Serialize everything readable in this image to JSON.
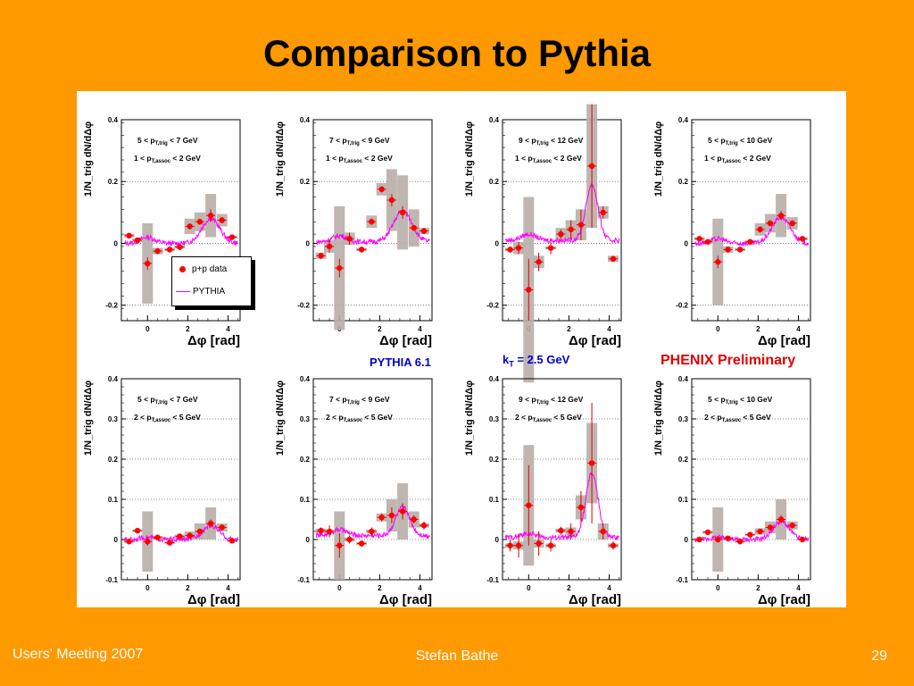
{
  "slide": {
    "title": "Comparison to Pythia",
    "footer_left": "Users' Meeting 2007",
    "footer_center": "Stefan Bathe",
    "footer_right": "29"
  },
  "annotations": {
    "pythia": "PYTHIA 6.1",
    "kt": "k",
    "kt_sub": "T",
    "kt_value": " = 2.5 GeV",
    "phenix": "PHENIX Preliminary"
  },
  "legend": {
    "data_label": "p+p data",
    "pythia_label": "PYTHIA"
  },
  "colors": {
    "background": "#FF9900",
    "data_points": "#FF0000",
    "pythia_curve": "#FF00FF",
    "systematic_box": "#B8AEA8"
  },
  "chart_data": [
    {
      "type": "scatter",
      "row": 0,
      "col": 0,
      "trig_label": "5 < p_T,trig < 7 GeV",
      "assoc_label": "1 < p_T,assoc < 2 GeV",
      "xlabel": "Δφ [rad]",
      "ylabel": "1/N_trig dN/dΔφ",
      "xlim": [
        -1.3,
        4.6
      ],
      "ylim": [
        -0.25,
        0.4
      ],
      "yticks": [
        -0.2,
        0,
        0.2,
        0.4
      ],
      "ytick_labels": [
        "-0.2",
        "0",
        "0.2",
        "0.4"
      ],
      "xticks": [
        0,
        2,
        4
      ],
      "xtick_labels": [
        "0",
        "2",
        "4"
      ],
      "series": [
        {
          "name": "p+p data",
          "x": [
            -0.92,
            -0.5,
            0,
            0.5,
            1.1,
            1.6,
            2.1,
            2.6,
            3.14,
            3.7,
            4.2
          ],
          "y": [
            0.025,
            0.01,
            -0.065,
            -0.025,
            -0.02,
            -0.012,
            0.055,
            0.07,
            0.09,
            0.075,
            0.02
          ],
          "yerr": [
            0.005,
            0.005,
            0.02,
            0.01,
            0.01,
            0.005,
            0.01,
            0.01,
            0.02,
            0.01,
            0.005
          ],
          "sys": [
            0.005,
            0.005,
            0.13,
            0.01,
            0.005,
            0.005,
            0.025,
            0.03,
            0.07,
            0.02,
            0.005
          ]
        }
      ],
      "pythia": {
        "base": 0.0,
        "away": 0.08,
        "near": 0.02,
        "width": 0.45
      }
    },
    {
      "type": "scatter",
      "row": 0,
      "col": 1,
      "trig_label": "7 < p_T,trig < 9 GeV",
      "assoc_label": "1 < p_T,assoc < 2 GeV",
      "xlabel": "Δφ [rad]",
      "ylabel": "1/N_trig dN/dΔφ",
      "xlim": [
        -1.3,
        4.6
      ],
      "ylim": [
        -0.25,
        0.4
      ],
      "yticks": [
        -0.2,
        0,
        0.2,
        0.4
      ],
      "ytick_labels": [
        "-0.2",
        "0",
        "0.2",
        "0.4"
      ],
      "xticks": [
        0,
        2,
        4
      ],
      "xtick_labels": [
        "0",
        "2",
        "4"
      ],
      "series": [
        {
          "name": "p+p data",
          "x": [
            -0.92,
            -0.5,
            0,
            0.5,
            1.1,
            1.6,
            2.1,
            2.6,
            3.14,
            3.7,
            4.2
          ],
          "y": [
            -0.04,
            -0.01,
            -0.08,
            0.015,
            -0.02,
            0.07,
            0.175,
            0.14,
            0.1,
            0.05,
            0.04
          ],
          "yerr": [
            0.01,
            0.02,
            0.03,
            0.02,
            0.01,
            0.01,
            0.01,
            0.02,
            0.02,
            0.01,
            0.01
          ],
          "sys": [
            0.01,
            0.02,
            0.2,
            0.02,
            0.005,
            0.02,
            0.02,
            0.1,
            0.12,
            0.06,
            0.01
          ]
        }
      ],
      "pythia": {
        "base": 0.005,
        "away": 0.1,
        "near": 0.02,
        "width": 0.45
      }
    },
    {
      "type": "scatter",
      "row": 0,
      "col": 2,
      "trig_label": "9 < p_T,trig < 12 GeV",
      "assoc_label": "1 < p_T,assoc < 2 GeV",
      "xlabel": "Δφ [rad]",
      "ylabel": "1/N_trig dN/dΔφ",
      "xlim": [
        -1.3,
        4.6
      ],
      "ylim": [
        -0.25,
        0.4
      ],
      "yticks": [
        -0.2,
        0,
        0.2,
        0.4
      ],
      "ytick_labels": [
        "-0.2",
        "0",
        "0.2",
        "0.4"
      ],
      "xticks": [
        0,
        2,
        4
      ],
      "xtick_labels": [
        "0",
        "2",
        "4"
      ],
      "series": [
        {
          "name": "p+p data",
          "x": [
            -0.92,
            -0.5,
            0,
            0.5,
            1.1,
            1.6,
            2.1,
            2.6,
            3.14,
            3.7,
            4.2
          ],
          "y": [
            -0.02,
            -0.015,
            -0.15,
            -0.06,
            -0.015,
            0.03,
            0.045,
            0.06,
            0.25,
            0.1,
            -0.05
          ],
          "yerr": [
            0.01,
            0.02,
            0.1,
            0.03,
            0.02,
            0.015,
            0.03,
            0.05,
            0.2,
            0.02,
            0.01
          ],
          "sys": [
            0.005,
            0.02,
            0.3,
            0.02,
            0.005,
            0.02,
            0.03,
            0.05,
            0.2,
            0.02,
            0.01
          ]
        }
      ],
      "pythia": {
        "base": 0.01,
        "away": 0.18,
        "near": 0.02,
        "width": 0.3
      }
    },
    {
      "type": "scatter",
      "row": 0,
      "col": 3,
      "trig_label": "5 < p_T,trig < 10 GeV",
      "assoc_label": "1 < p_T,assoc < 2 GeV",
      "xlabel": "Δφ [rad]",
      "ylabel": "1/N_trig dN/dΔφ",
      "xlim": [
        -1.3,
        4.6
      ],
      "ylim": [
        -0.25,
        0.4
      ],
      "yticks": [
        -0.2,
        0,
        0.2,
        0.4
      ],
      "ytick_labels": [
        "-0.2",
        "0",
        "0.2",
        "0.4"
      ],
      "xticks": [
        0,
        2,
        4
      ],
      "xtick_labels": [
        "0",
        "2",
        "4"
      ],
      "series": [
        {
          "name": "p+p data",
          "x": [
            -0.92,
            -0.5,
            0,
            0.5,
            1.1,
            1.6,
            2.1,
            2.6,
            3.14,
            3.7,
            4.2
          ],
          "y": [
            0.015,
            0.005,
            -0.06,
            -0.02,
            -0.02,
            0.005,
            0.045,
            0.065,
            0.09,
            0.065,
            0.015
          ],
          "yerr": [
            0.005,
            0.005,
            0.02,
            0.01,
            0.005,
            0.005,
            0.01,
            0.01,
            0.015,
            0.01,
            0.005
          ],
          "sys": [
            0.005,
            0.005,
            0.14,
            0.01,
            0.005,
            0.005,
            0.02,
            0.03,
            0.07,
            0.02,
            0.005
          ]
        }
      ],
      "pythia": {
        "base": 0.0,
        "away": 0.085,
        "near": 0.015,
        "width": 0.45
      }
    },
    {
      "type": "scatter",
      "row": 1,
      "col": 0,
      "trig_label": "5 < p_T,trig < 7 GeV",
      "assoc_label": "2 < p_T,assoc < 5 GeV",
      "xlabel": "Δφ [rad]",
      "ylabel": "1/N_trig dN/dΔφ",
      "xlim": [
        -1.3,
        4.6
      ],
      "ylim": [
        -0.1,
        0.4
      ],
      "yticks": [
        -0.1,
        0,
        0.1,
        0.2,
        0.3,
        0.4
      ],
      "ytick_labels": [
        "-0.1",
        "0",
        "0.1",
        "0.2",
        "0.3",
        "0.4"
      ],
      "xticks": [
        0,
        2,
        4
      ],
      "xtick_labels": [
        "0",
        "2",
        "4"
      ],
      "series": [
        {
          "name": "p+p data",
          "x": [
            -0.92,
            -0.5,
            0,
            0.5,
            1.1,
            1.6,
            2.1,
            2.6,
            3.14,
            3.7,
            4.2
          ],
          "y": [
            -0.005,
            0.022,
            -0.005,
            0.005,
            -0.008,
            0.008,
            0.01,
            0.02,
            0.04,
            0.03,
            -0.003
          ],
          "yerr": [
            0.003,
            0.004,
            0.01,
            0.004,
            0.003,
            0.003,
            0.005,
            0.007,
            0.01,
            0.006,
            0.003
          ],
          "sys": [
            0.003,
            0.003,
            0.075,
            0.004,
            0.003,
            0.004,
            0.01,
            0.02,
            0.04,
            0.01,
            0.003
          ]
        }
      ],
      "pythia": {
        "base": 0.0,
        "away": 0.035,
        "near": 0.005,
        "width": 0.4
      }
    },
    {
      "type": "scatter",
      "row": 1,
      "col": 1,
      "trig_label": "7 < p_T,trig < 9 GeV",
      "assoc_label": "2 < p_T,assoc < 5 GeV",
      "xlabel": "Δφ [rad]",
      "ylabel": "1/N_trig dN/dΔφ",
      "xlim": [
        -1.3,
        4.6
      ],
      "ylim": [
        -0.1,
        0.4
      ],
      "yticks": [
        -0.1,
        0,
        0.1,
        0.2,
        0.3,
        0.4
      ],
      "ytick_labels": [
        "-0.1",
        "0",
        "0.1",
        "0.2",
        "0.3",
        "0.4"
      ],
      "xticks": [
        0,
        2,
        4
      ],
      "xtick_labels": [
        "0",
        "2",
        "4"
      ],
      "series": [
        {
          "name": "p+p data",
          "x": [
            -0.92,
            -0.5,
            0,
            0.5,
            1.1,
            1.6,
            2.1,
            2.6,
            3.14,
            3.7,
            4.2
          ],
          "y": [
            0.022,
            0.02,
            -0.015,
            0.0,
            -0.01,
            0.02,
            0.055,
            0.06,
            0.07,
            0.05,
            0.035
          ],
          "yerr": [
            0.008,
            0.015,
            0.03,
            0.01,
            0.008,
            0.01,
            0.01,
            0.02,
            0.02,
            0.01,
            0.01
          ],
          "sys": [
            0.005,
            0.005,
            0.085,
            0.005,
            0.004,
            0.005,
            0.01,
            0.04,
            0.07,
            0.02,
            0.005
          ]
        }
      ],
      "pythia": {
        "base": 0.01,
        "away": 0.07,
        "near": 0.015,
        "width": 0.35
      }
    },
    {
      "type": "scatter",
      "row": 1,
      "col": 2,
      "trig_label": "9 < p_T,trig < 12 GeV",
      "assoc_label": "2 < p_T,assoc < 5 GeV",
      "xlabel": "Δφ [rad]",
      "ylabel": "1/N_trig dN/dΔφ",
      "xlim": [
        -1.3,
        4.6
      ],
      "ylim": [
        -0.1,
        0.4
      ],
      "yticks": [
        -0.1,
        0,
        0.1,
        0.2,
        0.3,
        0.4
      ],
      "ytick_labels": [
        "-0.1",
        "0",
        "0.1",
        "0.2",
        "0.3",
        "0.4"
      ],
      "xticks": [
        0,
        2,
        4
      ],
      "xtick_labels": [
        "0",
        "2",
        "4"
      ],
      "series": [
        {
          "name": "p+p data",
          "x": [
            -0.92,
            -0.5,
            0,
            0.5,
            1.1,
            1.6,
            2.1,
            2.6,
            3.14,
            3.7,
            4.2
          ],
          "y": [
            -0.015,
            -0.015,
            0.085,
            -0.01,
            -0.015,
            0.022,
            0.02,
            0.08,
            0.19,
            0.02,
            -0.015
          ],
          "yerr": [
            0.015,
            0.03,
            0.1,
            0.03,
            0.015,
            0.01,
            0.02,
            0.04,
            0.15,
            0.02,
            0.01
          ],
          "sys": [
            0.005,
            0.01,
            0.15,
            0.01,
            0.005,
            0.005,
            0.01,
            0.03,
            0.1,
            0.02,
            0.005
          ]
        }
      ],
      "pythia": {
        "base": 0.005,
        "away": 0.16,
        "near": 0.01,
        "width": 0.3
      }
    },
    {
      "type": "scatter",
      "row": 1,
      "col": 3,
      "trig_label": "5 < p_T,trig < 10 GeV",
      "assoc_label": "2 < p_T,assoc < 5 GeV",
      "xlabel": "Δφ [rad]",
      "ylabel": "1/N_trig dN/dΔφ",
      "xlim": [
        -1.3,
        4.6
      ],
      "ylim": [
        -0.1,
        0.4
      ],
      "yticks": [
        -0.1,
        0,
        0.1,
        0.2,
        0.3,
        0.4
      ],
      "ytick_labels": [
        "-0.1",
        "0",
        "0.1",
        "0.2",
        "0.3",
        "0.4"
      ],
      "xticks": [
        0,
        2,
        4
      ],
      "xtick_labels": [
        "0",
        "2",
        "4"
      ],
      "series": [
        {
          "name": "p+p data",
          "x": [
            -0.92,
            -0.5,
            0,
            0.5,
            1.1,
            1.6,
            2.1,
            2.6,
            3.14,
            3.7,
            4.2
          ],
          "y": [
            0.0,
            0.018,
            0.0,
            0.003,
            -0.005,
            0.012,
            0.02,
            0.03,
            0.05,
            0.035,
            0.0
          ],
          "yerr": [
            0.003,
            0.004,
            0.008,
            0.004,
            0.003,
            0.003,
            0.004,
            0.006,
            0.01,
            0.005,
            0.003
          ],
          "sys": [
            0.003,
            0.003,
            0.08,
            0.004,
            0.003,
            0.003,
            0.008,
            0.015,
            0.05,
            0.01,
            0.003
          ]
        }
      ],
      "pythia": {
        "base": 0.0,
        "away": 0.045,
        "near": 0.005,
        "width": 0.4
      }
    }
  ]
}
